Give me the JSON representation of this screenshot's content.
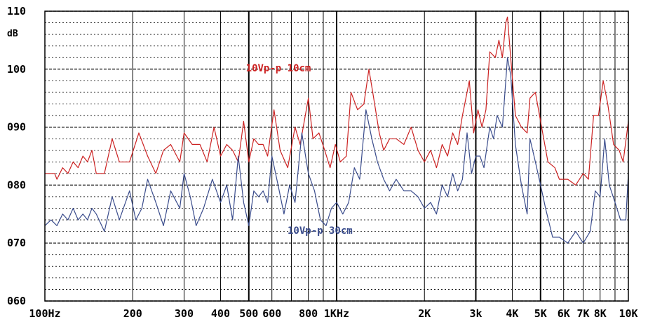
{
  "chart_data": {
    "type": "line",
    "ylabel": "dB",
    "y_scale": "linear",
    "x_scale": "log",
    "ylim": [
      60,
      110
    ],
    "xlim": [
      100,
      10000
    ],
    "y_ticks": [
      {
        "value": 60,
        "label": "060"
      },
      {
        "value": 70,
        "label": "070"
      },
      {
        "value": 80,
        "label": "080"
      },
      {
        "value": 90,
        "label": "090"
      },
      {
        "value": 100,
        "label": "100"
      },
      {
        "value": 110,
        "label": "110"
      }
    ],
    "x_ticks": [
      {
        "value": 100,
        "label": "100Hz"
      },
      {
        "value": 200,
        "label": "200"
      },
      {
        "value": 300,
        "label": "300"
      },
      {
        "value": 400,
        "label": "400"
      },
      {
        "value": 500,
        "label": "500"
      },
      {
        "value": 600,
        "label": "600"
      },
      {
        "value": 800,
        "label": "800"
      },
      {
        "value": 1000,
        "label": "1KHz"
      },
      {
        "value": 2000,
        "label": "2K"
      },
      {
        "value": 3000,
        "label": "3k"
      },
      {
        "value": 4000,
        "label": "4K"
      },
      {
        "value": 5000,
        "label": "5K"
      },
      {
        "value": 6000,
        "label": "6K"
      },
      {
        "value": 7000,
        "label": "7K"
      },
      {
        "value": 8000,
        "label": "8K"
      },
      {
        "value": 10000,
        "label": "10K"
      }
    ],
    "grid": true,
    "series": [
      {
        "name": "10Vp-p 10cm",
        "color": "#cc2222",
        "points": [
          [
            100,
            82
          ],
          [
            108,
            82
          ],
          [
            110,
            81
          ],
          [
            115,
            83
          ],
          [
            120,
            82
          ],
          [
            125,
            84
          ],
          [
            130,
            83
          ],
          [
            135,
            85
          ],
          [
            140,
            84
          ],
          [
            145,
            86
          ],
          [
            150,
            82
          ],
          [
            160,
            82
          ],
          [
            170,
            88
          ],
          [
            180,
            84
          ],
          [
            195,
            84
          ],
          [
            210,
            89
          ],
          [
            225,
            85
          ],
          [
            240,
            82
          ],
          [
            255,
            86
          ],
          [
            270,
            87
          ],
          [
            290,
            84
          ],
          [
            300,
            89
          ],
          [
            320,
            87
          ],
          [
            340,
            87
          ],
          [
            360,
            84
          ],
          [
            380,
            90
          ],
          [
            400,
            85
          ],
          [
            420,
            87
          ],
          [
            440,
            86
          ],
          [
            460,
            84
          ],
          [
            480,
            91
          ],
          [
            500,
            84
          ],
          [
            520,
            88
          ],
          [
            540,
            87
          ],
          [
            560,
            87
          ],
          [
            580,
            85
          ],
          [
            610,
            93
          ],
          [
            640,
            86
          ],
          [
            680,
            83
          ],
          [
            720,
            90
          ],
          [
            750,
            87
          ],
          [
            800,
            95
          ],
          [
            830,
            88
          ],
          [
            870,
            89
          ],
          [
            910,
            86
          ],
          [
            950,
            83
          ],
          [
            990,
            87
          ],
          [
            1030,
            84
          ],
          [
            1080,
            85
          ],
          [
            1120,
            96
          ],
          [
            1180,
            93
          ],
          [
            1240,
            94
          ],
          [
            1290,
            100
          ],
          [
            1330,
            96
          ],
          [
            1400,
            89
          ],
          [
            1450,
            86
          ],
          [
            1520,
            88
          ],
          [
            1600,
            88
          ],
          [
            1700,
            87
          ],
          [
            1800,
            90
          ],
          [
            1900,
            86
          ],
          [
            2000,
            84
          ],
          [
            2100,
            86
          ],
          [
            2200,
            83
          ],
          [
            2300,
            87
          ],
          [
            2400,
            85
          ],
          [
            2500,
            89
          ],
          [
            2600,
            87
          ],
          [
            2700,
            92
          ],
          [
            2800,
            96
          ],
          [
            2850,
            98
          ],
          [
            2950,
            89
          ],
          [
            3050,
            93
          ],
          [
            3150,
            90
          ],
          [
            3250,
            93
          ],
          [
            3350,
            103
          ],
          [
            3500,
            102
          ],
          [
            3600,
            105
          ],
          [
            3700,
            102
          ],
          [
            3800,
            108
          ],
          [
            3850,
            109
          ],
          [
            3950,
            102
          ],
          [
            4100,
            92
          ],
          [
            4300,
            90
          ],
          [
            4500,
            89
          ],
          [
            4600,
            95
          ],
          [
            4800,
            96
          ],
          [
            5000,
            91
          ],
          [
            5300,
            84
          ],
          [
            5600,
            83
          ],
          [
            5800,
            81
          ],
          [
            6200,
            81
          ],
          [
            6600,
            80
          ],
          [
            7000,
            82
          ],
          [
            7300,
            81
          ],
          [
            7600,
            92
          ],
          [
            7900,
            92
          ],
          [
            8200,
            98
          ],
          [
            8500,
            94
          ],
          [
            8900,
            87
          ],
          [
            9300,
            86
          ],
          [
            9600,
            84
          ],
          [
            10000,
            91
          ]
        ]
      },
      {
        "name": "10Vp-p 30cm",
        "color": "#3a4c8c",
        "points": [
          [
            100,
            73
          ],
          [
            105,
            74
          ],
          [
            110,
            73
          ],
          [
            115,
            75
          ],
          [
            120,
            74
          ],
          [
            125,
            76
          ],
          [
            130,
            74
          ],
          [
            135,
            75
          ],
          [
            140,
            74
          ],
          [
            145,
            76
          ],
          [
            150,
            75
          ],
          [
            160,
            72
          ],
          [
            170,
            78
          ],
          [
            180,
            74
          ],
          [
            195,
            79
          ],
          [
            205,
            74
          ],
          [
            215,
            76
          ],
          [
            225,
            81
          ],
          [
            240,
            77
          ],
          [
            255,
            73
          ],
          [
            270,
            79
          ],
          [
            290,
            76
          ],
          [
            300,
            82
          ],
          [
            315,
            78
          ],
          [
            330,
            73
          ],
          [
            350,
            76
          ],
          [
            375,
            81
          ],
          [
            400,
            77
          ],
          [
            420,
            80
          ],
          [
            440,
            74
          ],
          [
            460,
            85
          ],
          [
            480,
            77
          ],
          [
            500,
            73
          ],
          [
            520,
            79
          ],
          [
            540,
            78
          ],
          [
            560,
            79
          ],
          [
            580,
            77
          ],
          [
            600,
            85
          ],
          [
            630,
            80
          ],
          [
            660,
            75
          ],
          [
            690,
            80
          ],
          [
            720,
            77
          ],
          [
            760,
            89
          ],
          [
            800,
            82
          ],
          [
            840,
            79
          ],
          [
            880,
            74
          ],
          [
            920,
            73
          ],
          [
            960,
            76
          ],
          [
            1000,
            77
          ],
          [
            1050,
            75
          ],
          [
            1100,
            77
          ],
          [
            1150,
            83
          ],
          [
            1200,
            81
          ],
          [
            1260,
            93
          ],
          [
            1320,
            88
          ],
          [
            1380,
            84
          ],
          [
            1450,
            81
          ],
          [
            1520,
            79
          ],
          [
            1600,
            81
          ],
          [
            1700,
            79
          ],
          [
            1800,
            79
          ],
          [
            1900,
            78
          ],
          [
            2000,
            76
          ],
          [
            2100,
            77
          ],
          [
            2200,
            75
          ],
          [
            2300,
            80
          ],
          [
            2400,
            78
          ],
          [
            2500,
            82
          ],
          [
            2600,
            79
          ],
          [
            2700,
            81
          ],
          [
            2800,
            89
          ],
          [
            2900,
            82
          ],
          [
            3000,
            85
          ],
          [
            3100,
            85
          ],
          [
            3200,
            83
          ],
          [
            3350,
            90
          ],
          [
            3450,
            88
          ],
          [
            3550,
            92
          ],
          [
            3700,
            90
          ],
          [
            3850,
            102
          ],
          [
            3950,
            99
          ],
          [
            4100,
            87
          ],
          [
            4300,
            80
          ],
          [
            4500,
            75
          ],
          [
            4600,
            88
          ],
          [
            4800,
            84
          ],
          [
            5000,
            80
          ],
          [
            5200,
            76
          ],
          [
            5500,
            71
          ],
          [
            5800,
            71
          ],
          [
            6200,
            70
          ],
          [
            6600,
            72
          ],
          [
            7000,
            70
          ],
          [
            7400,
            72
          ],
          [
            7700,
            79
          ],
          [
            8000,
            78
          ],
          [
            8300,
            88
          ],
          [
            8600,
            80
          ],
          [
            9000,
            77
          ],
          [
            9400,
            74
          ],
          [
            9800,
            74
          ],
          [
            10000,
            82
          ]
        ]
      }
    ],
    "annotations": [
      {
        "text": "10Vp-p 10cm",
        "series": 0,
        "at_x": 720,
        "at_y": 99.6
      },
      {
        "text": "10Vp-p 30cm",
        "series": 1,
        "at_x": 1000,
        "at_y": 71.6
      }
    ]
  }
}
